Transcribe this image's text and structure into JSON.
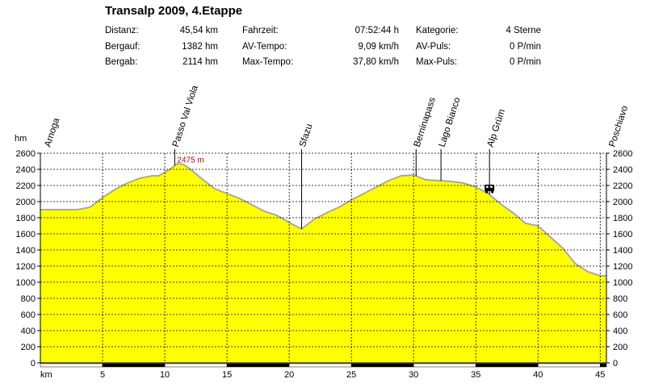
{
  "title": "Transalp 2009, 4.Etappe",
  "stats": {
    "distance_label": "Distanz:",
    "distance_value": "45,54 km",
    "ascent_label": "Bergauf:",
    "ascent_value": "1382 hm",
    "descent_label": "Bergab:",
    "descent_value": "2114 hm",
    "time_label": "Fahrzeit:",
    "time_value": "07:52:44 h",
    "avg_speed_label": "AV-Tempo:",
    "avg_speed_value": "9,09 km/h",
    "max_speed_label": "Max-Tempo:",
    "max_speed_value": "37,80 km/h",
    "category_label": "Kategorie:",
    "category_value": "4 Sterne",
    "avg_pulse_label": "AV-Puls:",
    "avg_pulse_value": "0 P/min",
    "max_pulse_label": "Max-Puls:",
    "max_pulse_value": "0 P/min"
  },
  "chart_data": {
    "type": "area",
    "ylabel": "hm",
    "xlabel": "km",
    "xlim": [
      0,
      45.5
    ],
    "ylim": [
      0,
      2600
    ],
    "x_ticks": [
      5,
      10,
      15,
      20,
      25,
      30,
      35,
      40,
      45
    ],
    "y_ticks": [
      0,
      200,
      400,
      600,
      800,
      1000,
      1200,
      1400,
      1600,
      1800,
      2000,
      2200,
      2400,
      2600
    ],
    "grid": true,
    "fill_color": "#ffff00",
    "line_color": "#a8a8a8",
    "profile": {
      "x": [
        0,
        1,
        2,
        3,
        4,
        5,
        6,
        7,
        8,
        9,
        9.5,
        10,
        10.5,
        11,
        11.5,
        12,
        13,
        14,
        15,
        16,
        17,
        18,
        19,
        20,
        20.5,
        21,
        21.5,
        22,
        23,
        24,
        25,
        26,
        27,
        28,
        29,
        30,
        30.5,
        31,
        32,
        33,
        34,
        35,
        36,
        37,
        38,
        39,
        40,
        41,
        42,
        43,
        44,
        45,
        45.5
      ],
      "y": [
        1900,
        1900,
        1900,
        1900,
        1930,
        2050,
        2150,
        2230,
        2290,
        2320,
        2320,
        2360,
        2410,
        2470,
        2460,
        2410,
        2280,
        2160,
        2100,
        2040,
        1960,
        1880,
        1830,
        1740,
        1700,
        1660,
        1720,
        1780,
        1860,
        1930,
        2020,
        2100,
        2180,
        2260,
        2320,
        2330,
        2300,
        2270,
        2260,
        2250,
        2230,
        2180,
        2100,
        1970,
        1860,
        1730,
        1700,
        1560,
        1420,
        1230,
        1130,
        1080,
        1080
      ]
    },
    "waypoints": [
      {
        "name": "Arnoga",
        "km": 0,
        "marker": false
      },
      {
        "name": "Passo Val Viola",
        "km": 10.8,
        "marker": true
      },
      {
        "name": "Sfazu",
        "km": 21,
        "marker": true
      },
      {
        "name": "Berninapass",
        "km": 30.2,
        "marker": true
      },
      {
        "name": "Lago Bianco",
        "km": 32.2,
        "marker": true
      },
      {
        "name": "Alp Grüm",
        "km": 36.1,
        "marker": true
      },
      {
        "name": "Poschiavo",
        "km": 45.2,
        "marker": false
      }
    ],
    "peak_annotation": "2475 m",
    "peak_annotation_km": 10.8,
    "peak_annotation_hm": 2475,
    "peak_annotation_color": "#cc0000",
    "refuge_icon": "train-icon",
    "refuge_icon_km": 36.1,
    "refuge_icon_hm": 2150,
    "x_axis_stripes_color": "#000000"
  }
}
